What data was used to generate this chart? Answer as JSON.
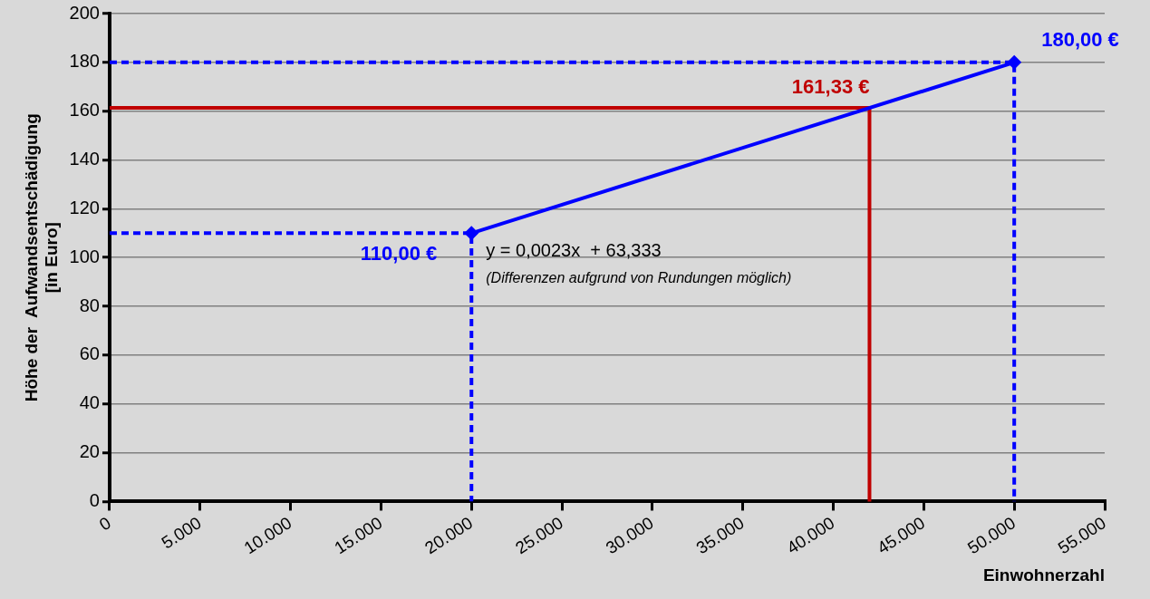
{
  "chart_data": {
    "type": "line",
    "xlabel": "Einwohnerzahl",
    "ylabel": "Höhe der  Aufwandsentschädigung\n[in Euro]",
    "series": [
      {
        "color": "#0000ff",
        "x": [
          20000,
          50000
        ],
        "values": [
          110,
          180
        ],
        "marker": "diamond",
        "line_style": "solid"
      },
      {
        "color": "#0000ff",
        "x": [
          0,
          50000,
          50000
        ],
        "values": [
          180,
          180,
          0
        ],
        "marker": "none",
        "line_style": "dashed"
      },
      {
        "color": "#0000ff",
        "x": [
          0,
          20000,
          20000
        ],
        "values": [
          110,
          110,
          0
        ],
        "marker": "none",
        "line_style": "dashed"
      },
      {
        "color": "#c00000",
        "x": [
          0,
          42000,
          42000
        ],
        "values": [
          161.33,
          161.33,
          0
        ],
        "marker": "none",
        "line_style": "solid"
      }
    ],
    "xlim": [
      0,
      55000
    ],
    "xticks": [
      0,
      {
        "value": 5000,
        "label": "5.000"
      },
      {
        "value": 10000,
        "label": "10.000"
      },
      {
        "value": 15000,
        "label": "15.000"
      },
      {
        "value": 20000,
        "label": "20.000"
      },
      {
        "value": 25000,
        "label": "25.000"
      },
      {
        "value": 30000,
        "label": "30.000"
      },
      {
        "value": 35000,
        "label": "35.000"
      },
      {
        "value": 40000,
        "label": "40.000"
      },
      {
        "value": 45000,
        "label": "45.000"
      },
      {
        "value": 50000,
        "label": "50.000"
      },
      {
        "value": 55000,
        "label": "55.000"
      }
    ],
    "ylim": [
      0,
      200
    ],
    "yticks": [
      0,
      20,
      40,
      60,
      80,
      100,
      120,
      140,
      160,
      180,
      200
    ],
    "grid": "y",
    "legend": false,
    "annotations": [
      {
        "text": "180,00 €",
        "x": 50000,
        "y": 180
      },
      {
        "text": "161,33 €",
        "x": 42000,
        "y": 161.33
      },
      {
        "text": "110,00 €",
        "x": 20000,
        "y": 110
      },
      "y = 0,0023x  + 63,333",
      "(Differenzen aufgrund von Rundungen möglich)"
    ]
  }
}
